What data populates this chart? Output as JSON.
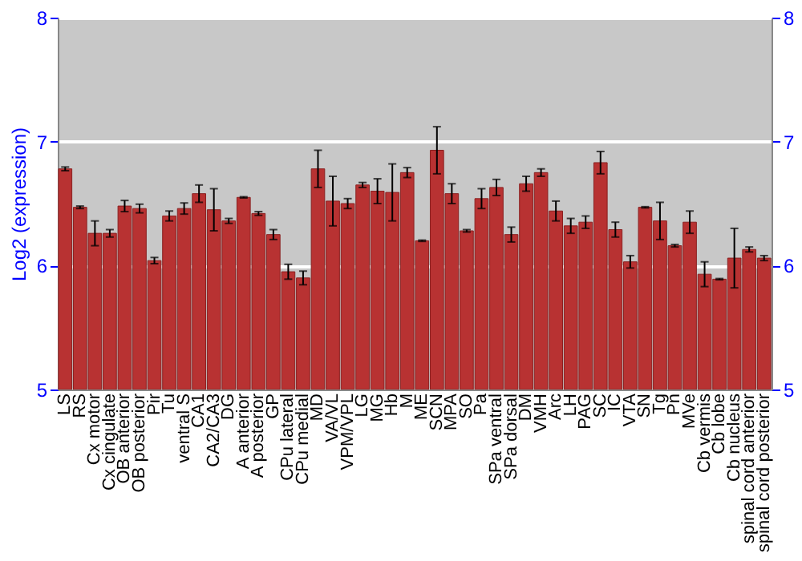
{
  "chart_data": {
    "type": "bar",
    "ylabel": "Log2 (expression)",
    "categories": [
      "LS",
      "RS",
      "Cx motor",
      "Cx cingulate",
      "OB anterior",
      "OB posterior",
      "Pir",
      "Tu",
      "ventral S",
      "CA1",
      "CA2/CA3",
      "DG",
      "A anterior",
      "A posterior",
      "GP",
      "CPu lateral",
      "CPu medial",
      "MD",
      "VA/VL",
      "VPM/VPL",
      "LG",
      "MG",
      "Hb",
      "M",
      "ME",
      "SCN",
      "MPA",
      "SO",
      "Pa",
      "SPa ventral",
      "SPa dorsal",
      "DM",
      "VMH",
      "Arc",
      "LH",
      "PAG",
      "SC",
      "IC",
      "VTA",
      "SN",
      "Tg",
      "Pn",
      "MVe",
      "Cb vermis",
      "Cb lobe",
      "Cb nucleus",
      "spinal cord anterior",
      "spinal cord posterior"
    ],
    "values": [
      6.78,
      6.47,
      6.26,
      6.26,
      6.48,
      6.46,
      6.04,
      6.4,
      6.46,
      6.58,
      6.45,
      6.36,
      6.55,
      6.42,
      6.25,
      5.95,
      5.9,
      6.78,
      6.52,
      6.5,
      6.65,
      6.6,
      6.59,
      6.75,
      6.2,
      6.93,
      6.58,
      6.28,
      6.54,
      6.63,
      6.25,
      6.66,
      6.75,
      6.44,
      6.32,
      6.35,
      6.83,
      6.29,
      6.03,
      6.47,
      6.36,
      6.16,
      6.35,
      5.93,
      5.89,
      6.06,
      6.13,
      6.06
    ],
    "errors": [
      0.015,
      0.01,
      0.1,
      0.03,
      0.045,
      0.035,
      0.025,
      0.04,
      0.045,
      0.07,
      0.17,
      0.02,
      0.005,
      0.015,
      0.04,
      0.06,
      0.055,
      0.15,
      0.2,
      0.04,
      0.02,
      0.1,
      0.23,
      0.04,
      0.005,
      0.19,
      0.08,
      0.01,
      0.08,
      0.065,
      0.06,
      0.06,
      0.03,
      0.08,
      0.06,
      0.05,
      0.09,
      0.06,
      0.05,
      0.005,
      0.15,
      0.01,
      0.09,
      0.1,
      0.005,
      0.24,
      0.02,
      0.02
    ],
    "color": "#b83232",
    "ylim": [
      5,
      8
    ],
    "yticks": [
      5,
      6,
      7,
      8
    ],
    "y2lim": [
      5,
      8
    ],
    "y2ticks": [
      5,
      6,
      7,
      8
    ],
    "grid": "y"
  }
}
